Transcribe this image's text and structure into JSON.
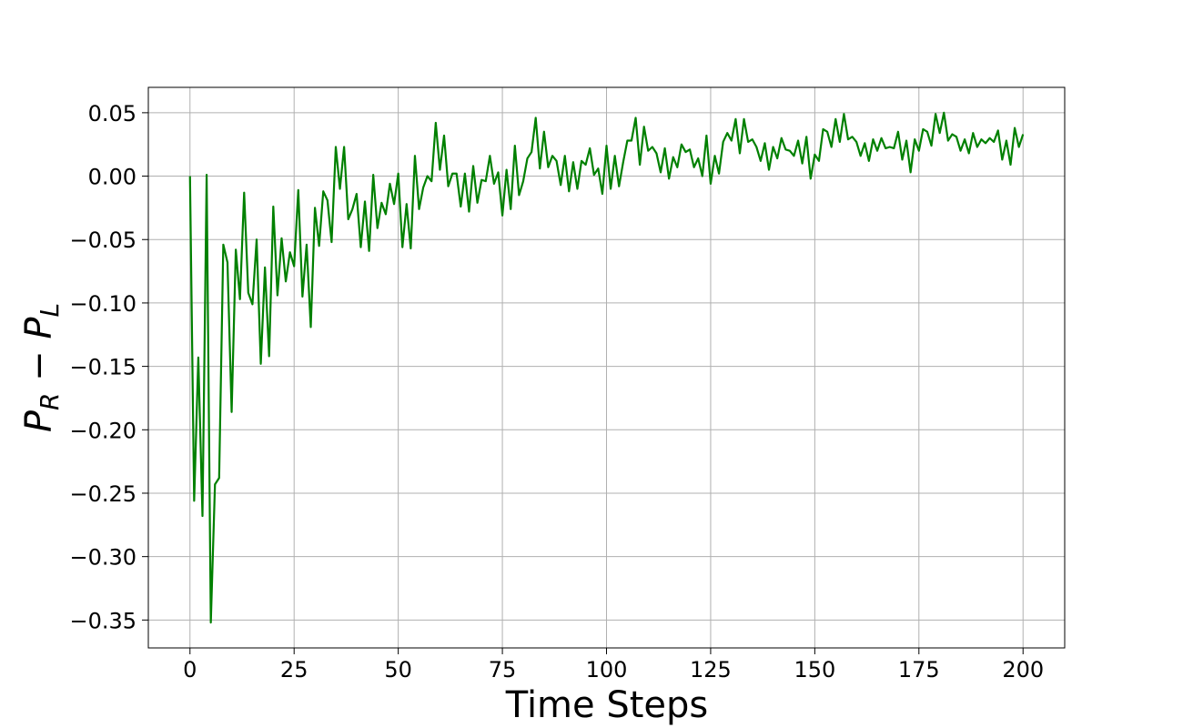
{
  "chart_data": {
    "type": "line",
    "xlabel": "Time Steps",
    "ylabel": {
      "main": "P",
      "sub_r": "R",
      "minus": " − ",
      "sub_l": "L"
    },
    "xlim": [
      -10,
      210
    ],
    "ylim": [
      -0.372,
      0.07
    ],
    "xticks": [
      0,
      25,
      50,
      75,
      100,
      125,
      150,
      175,
      200
    ],
    "xtick_labels": [
      "0",
      "25",
      "50",
      "75",
      "100",
      "125",
      "150",
      "175",
      "200"
    ],
    "yticks": [
      0.05,
      0.0,
      -0.05,
      -0.1,
      -0.15,
      -0.2,
      -0.25,
      -0.3,
      -0.35
    ],
    "ytick_labels": [
      "0.05",
      "0.00",
      "−0.05",
      "−0.10",
      "−0.15",
      "−0.20",
      "−0.25",
      "−0.30",
      "−0.35"
    ],
    "grid": true,
    "series": [
      {
        "color": "#008000",
        "x_start": 0,
        "x_step": 1,
        "values": [
          0.0,
          -0.256,
          -0.143,
          -0.268,
          0.001,
          -0.352,
          -0.243,
          -0.238,
          -0.054,
          -0.068,
          -0.186,
          -0.058,
          -0.097,
          -0.013,
          -0.092,
          -0.101,
          -0.05,
          -0.148,
          -0.072,
          -0.142,
          -0.024,
          -0.094,
          -0.049,
          -0.083,
          -0.06,
          -0.071,
          -0.011,
          -0.095,
          -0.054,
          -0.119,
          -0.025,
          -0.055,
          -0.012,
          -0.019,
          -0.052,
          0.023,
          -0.01,
          0.023,
          -0.034,
          -0.026,
          -0.014,
          -0.056,
          -0.02,
          -0.059,
          0.001,
          -0.041,
          -0.021,
          -0.03,
          -0.006,
          -0.022,
          0.002,
          -0.056,
          -0.022,
          -0.057,
          0.016,
          -0.026,
          -0.009,
          0.0,
          -0.004,
          0.042,
          0.005,
          0.032,
          -0.008,
          0.002,
          0.002,
          -0.024,
          0.002,
          -0.028,
          0.008,
          -0.021,
          -0.003,
          -0.004,
          0.016,
          -0.006,
          0.003,
          -0.031,
          0.005,
          -0.026,
          0.024,
          -0.015,
          -0.004,
          0.014,
          0.019,
          0.046,
          0.006,
          0.035,
          0.007,
          0.016,
          0.012,
          -0.007,
          0.016,
          -0.012,
          0.011,
          -0.01,
          0.012,
          0.009,
          0.022,
          0.001,
          0.006,
          -0.014,
          0.024,
          -0.01,
          0.016,
          -0.008,
          0.011,
          0.028,
          0.028,
          0.046,
          0.009,
          0.039,
          0.02,
          0.023,
          0.018,
          0.003,
          0.022,
          -0.002,
          0.015,
          0.007,
          0.025,
          0.019,
          0.021,
          0.007,
          0.014,
          0.0,
          0.032,
          -0.006,
          0.016,
          0.002,
          0.027,
          0.034,
          0.028,
          0.045,
          0.018,
          0.045,
          0.027,
          0.029,
          0.023,
          0.012,
          0.026,
          0.005,
          0.023,
          0.014,
          0.03,
          0.021,
          0.02,
          0.016,
          0.028,
          0.01,
          0.031,
          -0.002,
          0.017,
          0.012,
          0.037,
          0.035,
          0.023,
          0.045,
          0.027,
          0.049,
          0.029,
          0.031,
          0.027,
          0.016,
          0.026,
          0.012,
          0.029,
          0.02,
          0.03,
          0.022,
          0.023,
          0.022,
          0.035,
          0.013,
          0.028,
          0.003,
          0.029,
          0.02,
          0.037,
          0.035,
          0.024,
          0.049,
          0.034,
          0.05,
          0.028,
          0.033,
          0.031,
          0.02,
          0.029,
          0.018,
          0.034,
          0.023,
          0.029,
          0.026,
          0.03,
          0.027,
          0.036,
          0.013,
          0.028,
          0.009,
          0.038,
          0.023,
          0.033
        ]
      }
    ]
  }
}
